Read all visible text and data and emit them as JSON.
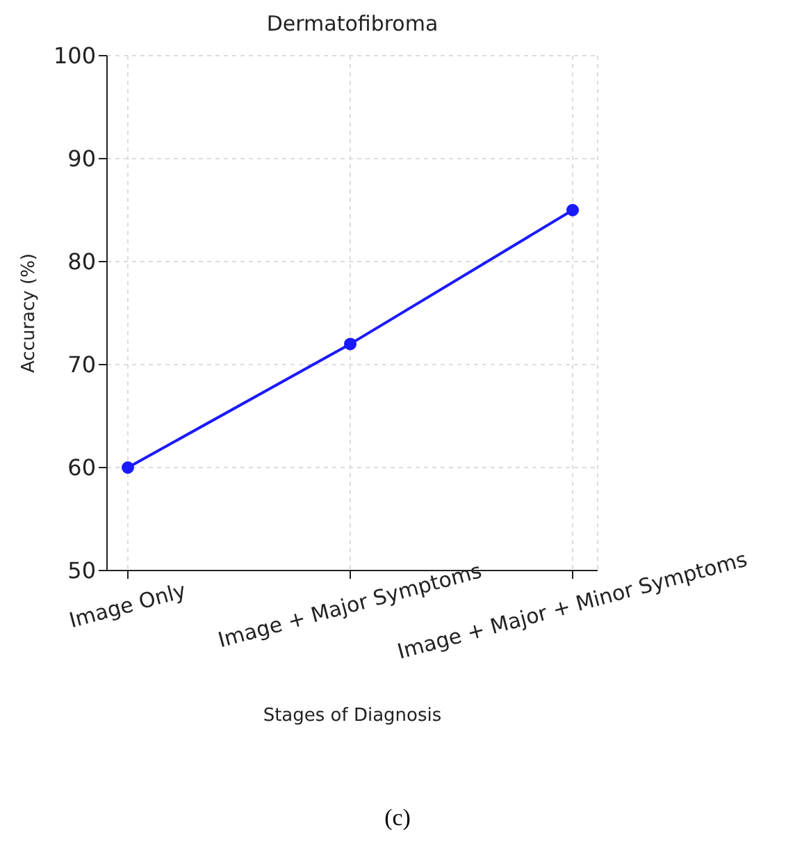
{
  "chart_data": {
    "type": "line",
    "title": "Dermatofibroma",
    "xlabel": "Stages of Diagnosis",
    "ylabel": "Accuracy (%)",
    "categories": [
      "Image Only",
      "Image + Major Symptoms",
      "Image + Major + Minor Symptoms"
    ],
    "series": [
      {
        "color": "#1a1aff",
        "values": [
          60,
          72,
          85
        ]
      }
    ],
    "ylim": [
      50,
      100
    ],
    "yticks": [
      50,
      60,
      70,
      80,
      90,
      100
    ],
    "grid": true,
    "marker": "circle",
    "line_style": "solid",
    "annotations": [
      "(c)"
    ]
  }
}
